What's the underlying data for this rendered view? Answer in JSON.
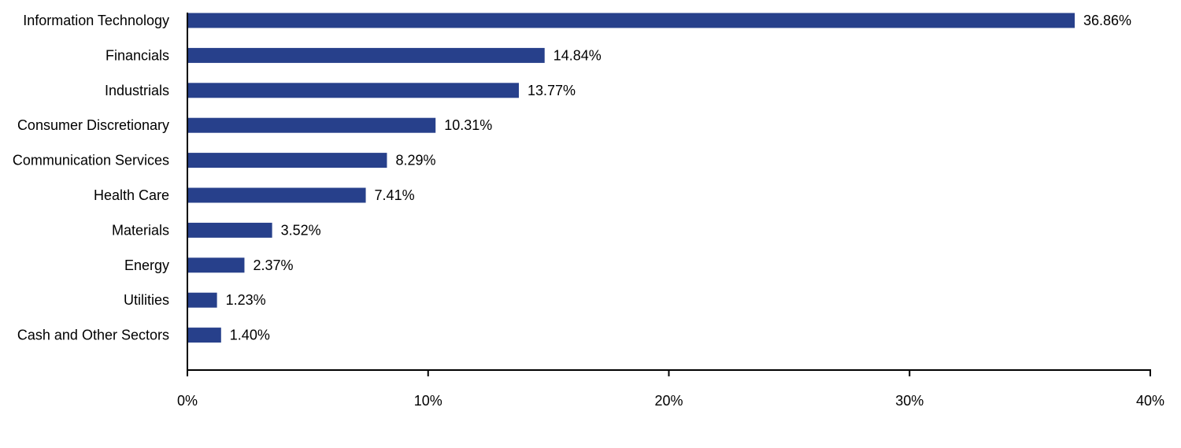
{
  "chart_data": {
    "type": "bar",
    "orientation": "horizontal",
    "title": "",
    "xlabel": "",
    "ylabel": "",
    "categories": [
      "Information Technology",
      "Financials",
      "Industrials",
      "Consumer Discretionary",
      "Communication Services",
      "Health Care",
      "Materials",
      "Energy",
      "Utilities",
      "Cash and Other Sectors"
    ],
    "values": [
      36.86,
      14.84,
      13.77,
      10.31,
      8.29,
      7.41,
      3.52,
      2.37,
      1.23,
      1.4
    ],
    "value_labels": [
      "36.86%",
      "14.84%",
      "13.77%",
      "10.31%",
      "8.29%",
      "7.41%",
      "3.52%",
      "2.37%",
      "1.23%",
      "1.40%"
    ],
    "xlim": [
      0,
      40
    ],
    "x_ticks": [
      0,
      10,
      20,
      30,
      40
    ],
    "x_tick_labels": [
      "0%",
      "10%",
      "20%",
      "30%",
      "40%"
    ],
    "grid": false,
    "legend": "none",
    "bar_color": "#27408b",
    "axis_color": "#000000"
  }
}
